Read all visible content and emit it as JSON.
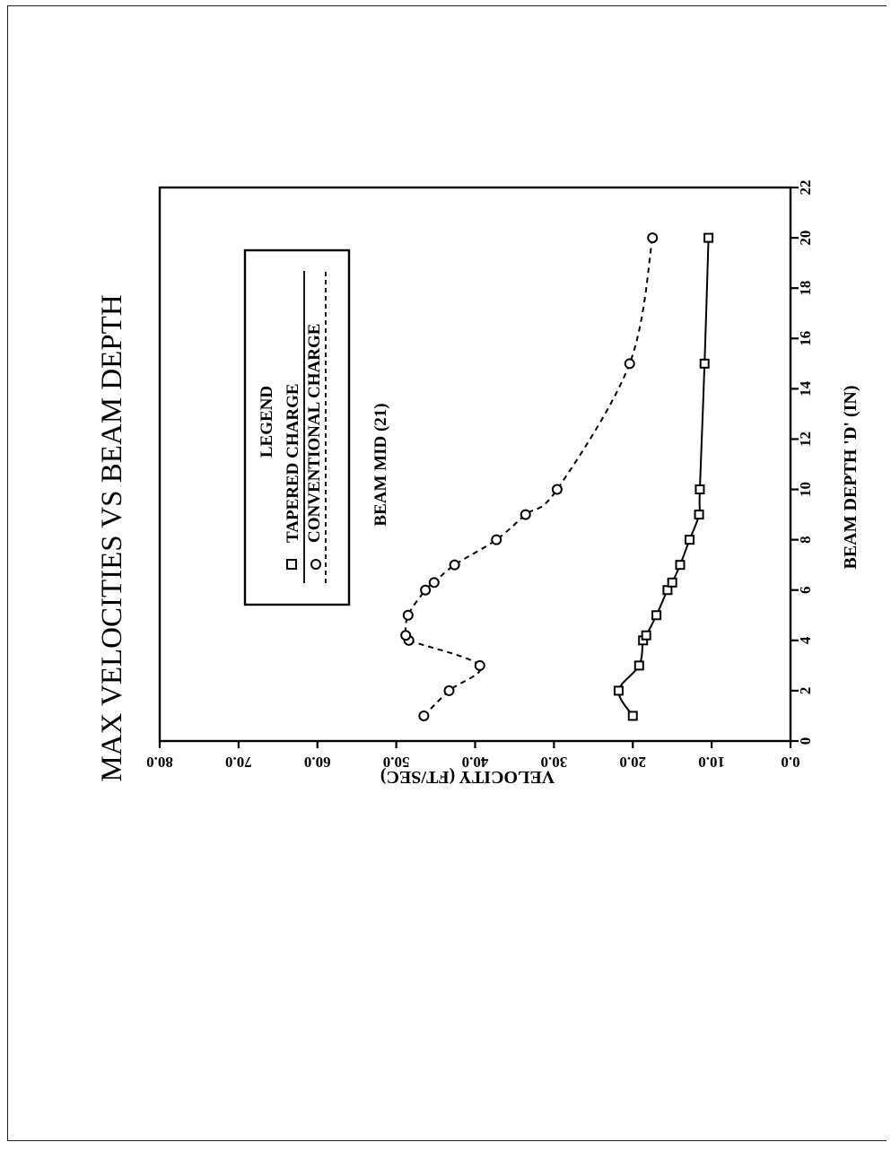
{
  "chart_data": {
    "type": "line",
    "title": "MAX VELOCITIES VS BEAM DEPTH",
    "xlabel": "BEAM DEPTH 'D' (IN)",
    "ylabel": "VELOCITY (FT/SEC)",
    "xlim": [
      0,
      22
    ],
    "ylim": [
      0,
      80
    ],
    "x_ticks": [
      "0",
      "2",
      "4",
      "6",
      "8",
      "10",
      "12",
      "14",
      "16",
      "18",
      "20",
      "22"
    ],
    "y_ticks": [
      "0.0",
      "10.0",
      "20.0",
      "30.0",
      "40.0",
      "50.0",
      "60.0",
      "70.0",
      "80.0"
    ],
    "orientation": "rotated 90 degrees clockwise on the page",
    "legend": {
      "title": "LEGEND",
      "placement": "upper-left of plot (bottom-right in chart coordinates)",
      "entries": [
        "TAPERED CHARGE",
        "CONVENTIONAL CHARGE"
      ]
    },
    "annotation": "BEAM MID (21)",
    "grid": false,
    "series": [
      {
        "name": "TAPERED CHARGE",
        "marker": "square",
        "line": "solid",
        "x": [
          1,
          2,
          3,
          4,
          4.2,
          5,
          6,
          6.3,
          7,
          8,
          9,
          10,
          15,
          20
        ],
        "y": [
          20.0,
          21.8,
          19.2,
          18.7,
          18.3,
          17.0,
          15.6,
          15.0,
          14.0,
          12.8,
          11.6,
          11.5,
          10.9,
          10.4
        ]
      },
      {
        "name": "CONVENTIONAL CHARGE",
        "marker": "circle",
        "line": "dashed",
        "x": [
          1,
          2,
          3,
          4,
          4.2,
          5,
          6,
          6.3,
          7,
          8,
          9,
          10,
          15,
          20
        ],
        "y": [
          46.5,
          43.3,
          39.4,
          48.4,
          48.8,
          48.5,
          46.3,
          45.2,
          42.6,
          37.3,
          33.6,
          29.6,
          20.4,
          17.5
        ]
      }
    ]
  }
}
